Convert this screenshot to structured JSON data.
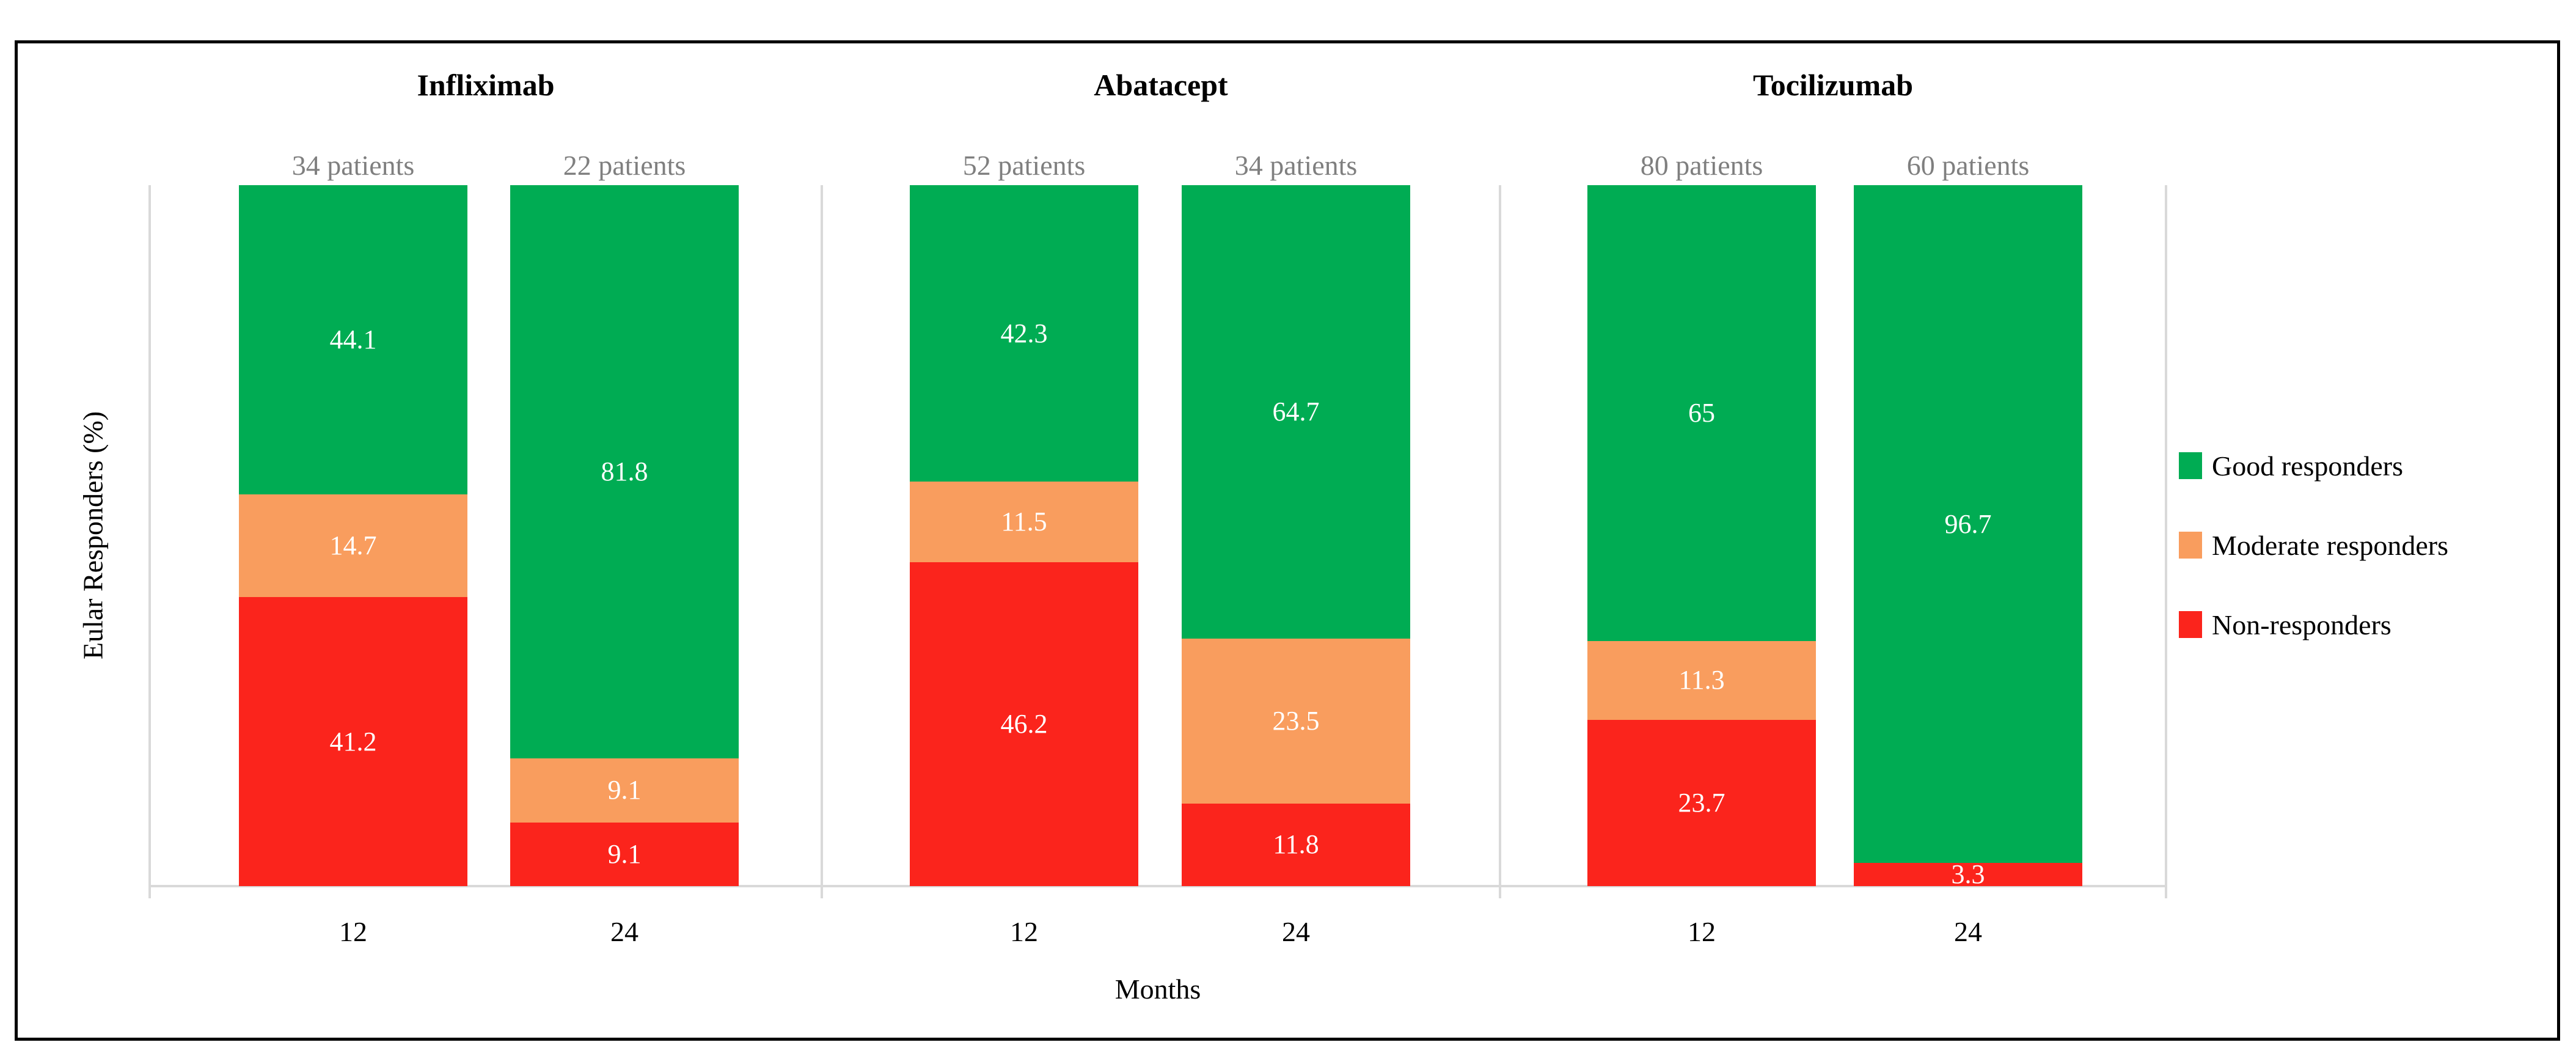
{
  "chart_data": {
    "type": "bar",
    "stacked": true,
    "orientation": "vertical",
    "ylabel": "Eular Responders (%)",
    "xlabel": "Months",
    "ylim": [
      0,
      100
    ],
    "grid": false,
    "legend_position": "right",
    "axis_color": "#d9d9d9",
    "patient_label_color": "#7f7f7f",
    "value_label_color": "#ffffff",
    "colors": {
      "good": "#00ac53",
      "moderate": "#f99d5e",
      "non": "#fb241c"
    },
    "legend": [
      {
        "key": "good",
        "label": "Good responders",
        "color": "#00ac53"
      },
      {
        "key": "moderate",
        "label": "Moderate responders",
        "color": "#f99d5e"
      },
      {
        "key": "non",
        "label": "Non-responders",
        "color": "#fb241c"
      }
    ],
    "groups": [
      {
        "drug": "Infliximab",
        "bars": [
          {
            "months": "12",
            "patients": "34 patients",
            "segments": {
              "good": 44.1,
              "moderate": 14.7,
              "non": 41.2
            }
          },
          {
            "months": "24",
            "patients": "22 patients",
            "segments": {
              "good": 81.8,
              "moderate": 9.1,
              "non": 9.1
            }
          }
        ]
      },
      {
        "drug": "Abatacept",
        "bars": [
          {
            "months": "12",
            "patients": "52 patients",
            "segments": {
              "good": 42.3,
              "moderate": 11.5,
              "non": 46.2
            }
          },
          {
            "months": "24",
            "patients": "34 patients",
            "segments": {
              "good": 64.7,
              "moderate": 23.5,
              "non": 11.8
            }
          }
        ]
      },
      {
        "drug": "Tocilizumab",
        "bars": [
          {
            "months": "12",
            "patients": "80 patients",
            "segments": {
              "good": 65,
              "moderate": 11.3,
              "non": 23.7
            }
          },
          {
            "months": "24",
            "patients": "60 patients",
            "segments": {
              "good": 96.7,
              "non": 3.3
            }
          }
        ]
      }
    ]
  }
}
